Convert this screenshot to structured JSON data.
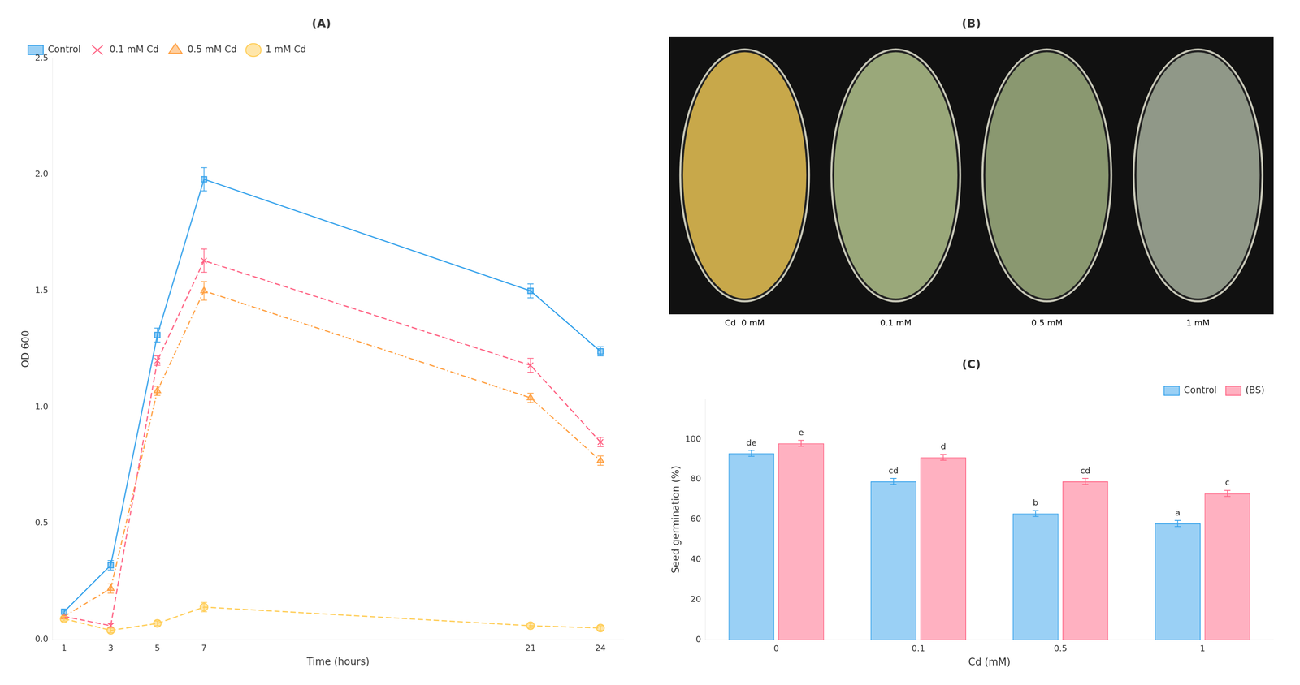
{
  "chart_data": [
    {
      "type": "line",
      "title": "(A)",
      "x_label": "Time (hours)",
      "y_label": "OD 600",
      "x": [
        1,
        3,
        5,
        7,
        21,
        24
      ],
      "xlim": [
        0.5,
        25
      ],
      "xticks": [
        1,
        3,
        5,
        7,
        21,
        24
      ],
      "ylim": [
        0,
        2.5
      ],
      "yticks": [
        {
          "value": 0,
          "label": "0.0"
        },
        {
          "value": 0.5,
          "label": "0.5"
        },
        {
          "value": 1,
          "label": "1.0"
        },
        {
          "value": 1.5,
          "label": "1.5"
        },
        {
          "value": 2,
          "label": "2.0"
        },
        {
          "value": 2.5,
          "label": "2.5"
        }
      ],
      "series": [
        {
          "name": "Control",
          "values": [
            0.12,
            0.32,
            1.31,
            1.98,
            1.5,
            1.24
          ],
          "errors": [
            0.01,
            0.02,
            0.03,
            0.05,
            0.03,
            0.02
          ],
          "marker": "square",
          "line_style": "solid"
        },
        {
          "name": "0.1 mM Cd",
          "values": [
            0.1,
            0.06,
            1.2,
            1.63,
            1.18,
            0.85
          ],
          "errors": [
            0.01,
            0.01,
            0.02,
            0.05,
            0.03,
            0.02
          ],
          "marker": "cross",
          "line_style": "dashed"
        },
        {
          "name": "0.5 mM Cd",
          "values": [
            0.1,
            0.22,
            1.07,
            1.5,
            1.04,
            0.77
          ],
          "errors": [
            0.01,
            0.02,
            0.02,
            0.04,
            0.02,
            0.02
          ],
          "marker": "triangle",
          "line_style": "dashdot"
        },
        {
          "name": "1 mM Cd",
          "values": [
            0.09,
            0.04,
            0.07,
            0.14,
            0.06,
            0.05
          ],
          "errors": [
            0.01,
            0.01,
            0.01,
            0.02,
            0.01,
            0.01
          ],
          "marker": "circle",
          "line_style": "dashed"
        }
      ],
      "grid": false,
      "legend": "upper left"
    },
    {
      "type": "illustration",
      "title": "(B)",
      "categories": [
        "Cd  0 mM",
        "0.1 mM",
        "0.5 mM",
        "1 mM"
      ],
      "colors": [
        "#c8a84a",
        "#9aa87a",
        "#8a9870",
        "#909888"
      ]
    },
    {
      "type": "bar",
      "title": "(C)",
      "x_label": "Cd (mM)",
      "y_label": "Seed germination (%)",
      "categories": [
        "0",
        "0.1",
        "0.5",
        "1"
      ],
      "ylim": [
        0,
        120
      ],
      "yticks": [
        0,
        20,
        40,
        60,
        80,
        100
      ],
      "series": [
        {
          "name": "Control",
          "values": [
            93,
            79,
            63,
            58
          ],
          "errors": [
            1.5,
            1.5,
            1.5,
            1.5
          ],
          "annotations": [
            "de",
            "cd",
            "b",
            "a"
          ]
        },
        {
          "name": "(BS)",
          "values": [
            98,
            91,
            79,
            73
          ],
          "errors": [
            1.5,
            1.5,
            1.5,
            1.5
          ],
          "annotations": [
            "e",
            "d",
            "cd",
            "c"
          ]
        }
      ],
      "grid": false,
      "legend": "upper right"
    }
  ]
}
